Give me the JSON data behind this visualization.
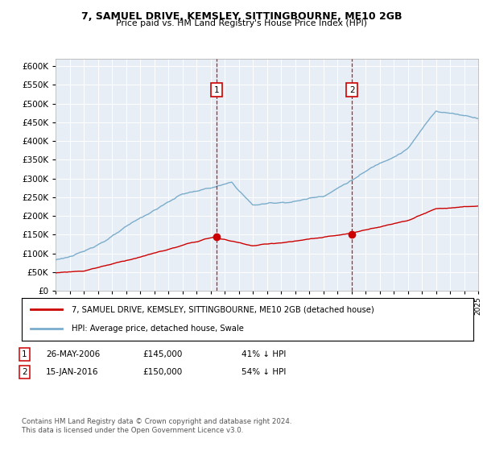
{
  "title1": "7, SAMUEL DRIVE, KEMSLEY, SITTINGBOURNE, ME10 2GB",
  "title2": "Price paid vs. HM Land Registry's House Price Index (HPI)",
  "legend_red": "7, SAMUEL DRIVE, KEMSLEY, SITTINGBOURNE, ME10 2GB (detached house)",
  "legend_blue": "HPI: Average price, detached house, Swale",
  "point1_date": "26-MAY-2006",
  "point1_price": "£145,000",
  "point1_hpi": "41% ↓ HPI",
  "point1_year": 2006.42,
  "point1_value_red": 145000,
  "point2_date": "15-JAN-2016",
  "point2_price": "£150,000",
  "point2_hpi": "54% ↓ HPI",
  "point2_year": 2016.04,
  "point2_value_red": 150000,
  "footer": "Contains HM Land Registry data © Crown copyright and database right 2024.\nThis data is licensed under the Open Government Licence v3.0.",
  "red_color": "#cc0000",
  "blue_color": "#7aadcc",
  "background_plot": "#e8eef5",
  "ylim": [
    0,
    620000
  ],
  "yticks": [
    0,
    50000,
    100000,
    150000,
    200000,
    250000,
    300000,
    350000,
    400000,
    450000,
    500000,
    550000,
    600000
  ],
  "year_start": 1995,
  "year_end": 2025
}
